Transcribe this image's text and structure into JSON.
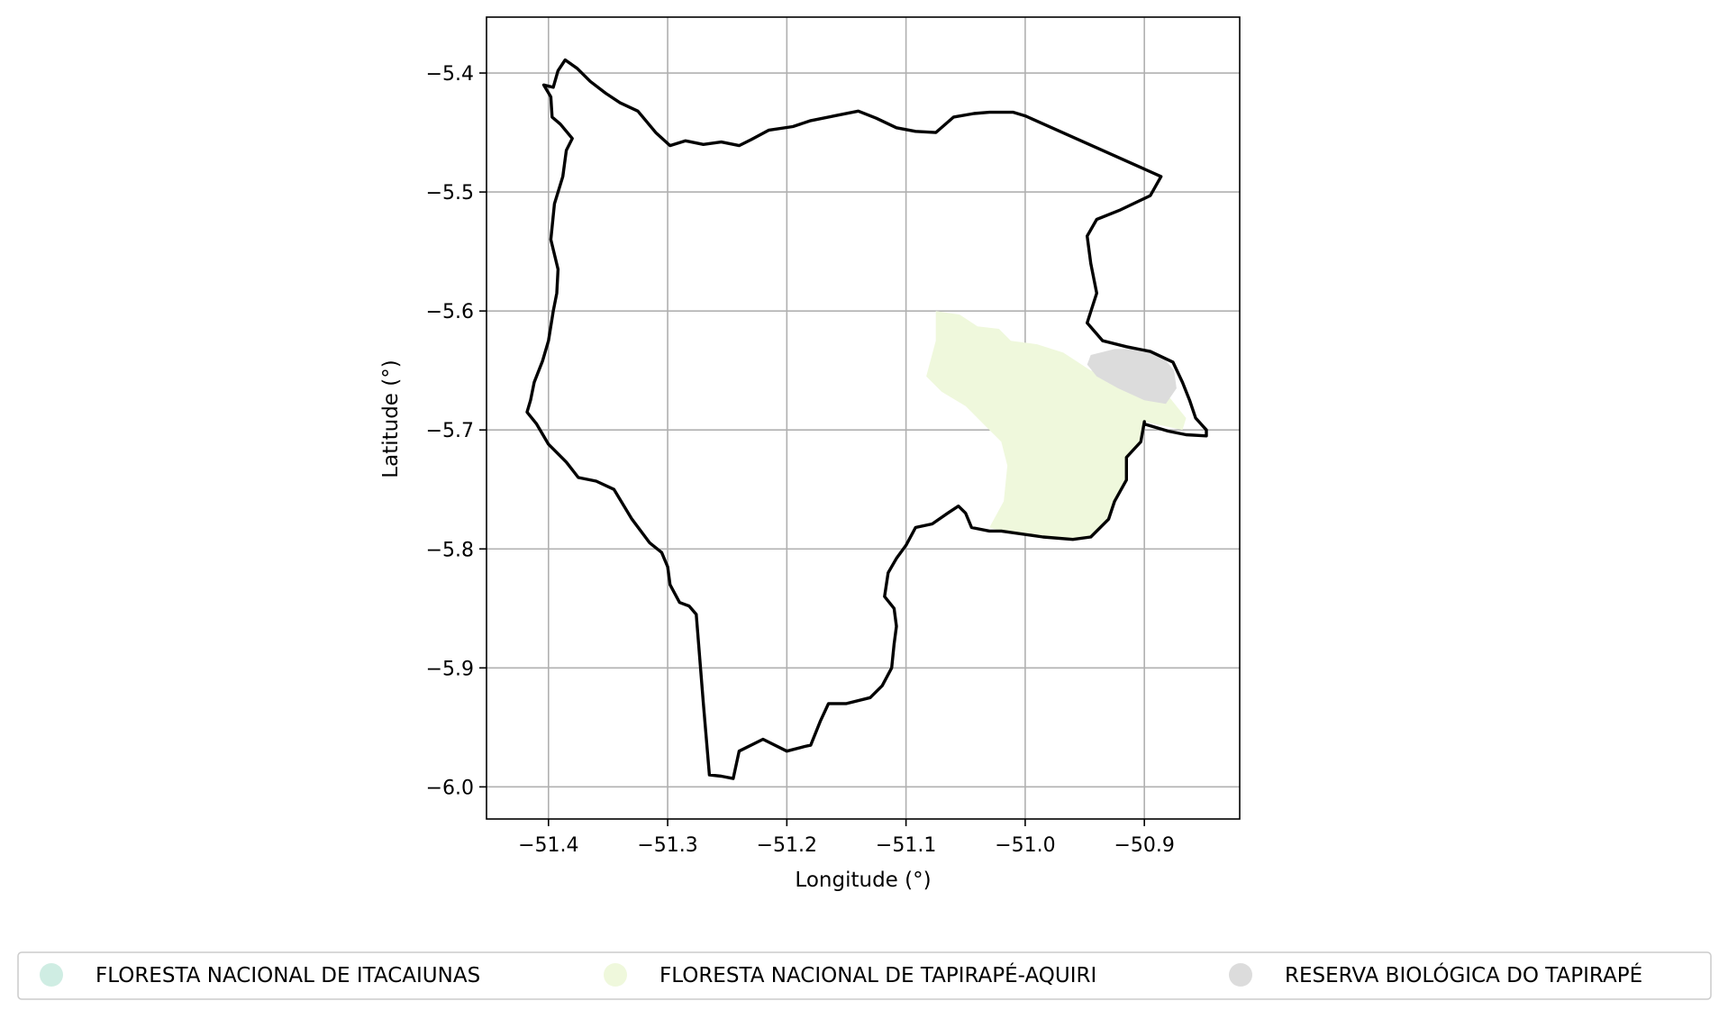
{
  "chart_data": {
    "type": "map",
    "xlabel": "Longitude (°)",
    "ylabel": "Latitude (°)",
    "xlim": [
      -51.452,
      -50.82
    ],
    "ylim": [
      -6.027,
      -5.353
    ],
    "x_ticks": [
      -51.4,
      -51.3,
      -51.2,
      -51.1,
      -51.0,
      -50.9
    ],
    "x_tick_labels": [
      "−51.4",
      "−51.3",
      "−51.2",
      "−51.1",
      "−51.0",
      "−50.9"
    ],
    "y_ticks": [
      -5.4,
      -5.5,
      -5.6,
      -5.7,
      -5.8,
      -5.9,
      -6.0
    ],
    "y_tick_labels": [
      "−5.4",
      "−5.5",
      "−5.6",
      "−5.7",
      "−5.8",
      "−5.9",
      "−6.0"
    ],
    "grid": true,
    "legend_position": "bottom",
    "boundary": {
      "color": "#000000",
      "coordinates": [
        [
          -51.404,
          -5.41
        ],
        [
          -51.396,
          -5.412
        ],
        [
          -51.392,
          -5.398
        ],
        [
          -51.386,
          -5.389
        ],
        [
          -51.376,
          -5.396
        ],
        [
          -51.365,
          -5.407
        ],
        [
          -51.352,
          -5.417
        ],
        [
          -51.34,
          -5.425
        ],
        [
          -51.325,
          -5.432
        ],
        [
          -51.31,
          -5.45
        ],
        [
          -51.298,
          -5.461
        ],
        [
          -51.285,
          -5.457
        ],
        [
          -51.27,
          -5.46
        ],
        [
          -51.255,
          -5.458
        ],
        [
          -51.24,
          -5.461
        ],
        [
          -51.23,
          -5.456
        ],
        [
          -51.215,
          -5.448
        ],
        [
          -51.195,
          -5.445
        ],
        [
          -51.18,
          -5.44
        ],
        [
          -51.16,
          -5.436
        ],
        [
          -51.14,
          -5.432
        ],
        [
          -51.125,
          -5.438
        ],
        [
          -51.108,
          -5.446
        ],
        [
          -51.092,
          -5.449
        ],
        [
          -51.075,
          -5.45
        ],
        [
          -51.06,
          -5.437
        ],
        [
          -51.043,
          -5.434
        ],
        [
          -51.03,
          -5.433
        ],
        [
          -51.01,
          -5.433
        ],
        [
          -51.0,
          -5.436
        ],
        [
          -50.886,
          -5.487
        ],
        [
          -50.895,
          -5.503
        ],
        [
          -50.92,
          -5.515
        ],
        [
          -50.94,
          -5.523
        ],
        [
          -50.948,
          -5.537
        ],
        [
          -50.945,
          -5.56
        ],
        [
          -50.94,
          -5.585
        ],
        [
          -50.948,
          -5.61
        ],
        [
          -50.935,
          -5.625
        ],
        [
          -50.915,
          -5.63
        ],
        [
          -50.895,
          -5.634
        ],
        [
          -50.876,
          -5.643
        ],
        [
          -50.868,
          -5.66
        ],
        [
          -50.862,
          -5.675
        ],
        [
          -50.857,
          -5.69
        ],
        [
          -50.848,
          -5.7
        ],
        [
          -50.848,
          -5.705
        ],
        [
          -50.865,
          -5.704
        ],
        [
          -50.88,
          -5.701
        ],
        [
          -50.9,
          -5.695
        ],
        [
          -50.9,
          -5.693
        ],
        [
          -50.903,
          -5.71
        ],
        [
          -50.915,
          -5.723
        ],
        [
          -50.915,
          -5.742
        ],
        [
          -50.925,
          -5.76
        ],
        [
          -50.93,
          -5.775
        ],
        [
          -50.945,
          -5.79
        ],
        [
          -50.96,
          -5.792
        ],
        [
          -50.985,
          -5.79
        ],
        [
          -51.02,
          -5.785
        ],
        [
          -51.03,
          -5.785
        ],
        [
          -51.045,
          -5.782
        ],
        [
          -51.05,
          -5.77
        ],
        [
          -51.056,
          -5.764
        ],
        [
          -51.065,
          -5.77
        ],
        [
          -51.078,
          -5.779
        ],
        [
          -51.092,
          -5.782
        ],
        [
          -51.1,
          -5.797
        ],
        [
          -51.108,
          -5.808
        ],
        [
          -51.115,
          -5.82
        ],
        [
          -51.118,
          -5.84
        ],
        [
          -51.11,
          -5.85
        ],
        [
          -51.108,
          -5.865
        ],
        [
          -51.11,
          -5.88
        ],
        [
          -51.112,
          -5.9
        ],
        [
          -51.12,
          -5.915
        ],
        [
          -51.13,
          -5.925
        ],
        [
          -51.15,
          -5.93
        ],
        [
          -51.165,
          -5.93
        ],
        [
          -51.172,
          -5.945
        ],
        [
          -51.18,
          -5.965
        ],
        [
          -51.185,
          -5.966
        ],
        [
          -51.2,
          -5.97
        ],
        [
          -51.22,
          -5.96
        ],
        [
          -51.24,
          -5.97
        ],
        [
          -51.245,
          -5.993
        ],
        [
          -51.255,
          -5.991
        ],
        [
          -51.265,
          -5.99
        ],
        [
          -51.27,
          -5.93
        ],
        [
          -51.276,
          -5.855
        ],
        [
          -51.282,
          -5.848
        ],
        [
          -51.29,
          -5.845
        ],
        [
          -51.298,
          -5.83
        ],
        [
          -51.3,
          -5.815
        ],
        [
          -51.305,
          -5.803
        ],
        [
          -51.315,
          -5.795
        ],
        [
          -51.33,
          -5.775
        ],
        [
          -51.345,
          -5.75
        ],
        [
          -51.36,
          -5.743
        ],
        [
          -51.375,
          -5.74
        ],
        [
          -51.385,
          -5.727
        ],
        [
          -51.4,
          -5.712
        ],
        [
          -51.41,
          -5.695
        ],
        [
          -51.418,
          -5.685
        ],
        [
          -51.415,
          -5.675
        ],
        [
          -51.412,
          -5.66
        ],
        [
          -51.405,
          -5.642
        ],
        [
          -51.4,
          -5.625
        ],
        [
          -51.396,
          -5.6
        ],
        [
          -51.393,
          -5.585
        ],
        [
          -51.392,
          -5.565
        ],
        [
          -51.398,
          -5.54
        ],
        [
          -51.395,
          -5.51
        ],
        [
          -51.388,
          -5.487
        ],
        [
          -51.385,
          -5.465
        ],
        [
          -51.38,
          -5.455
        ],
        [
          -51.39,
          -5.443
        ],
        [
          -51.397,
          -5.437
        ],
        [
          -51.398,
          -5.42
        ],
        [
          -51.404,
          -5.41
        ]
      ]
    },
    "areas": [
      {
        "name": "FLORESTA NACIONAL DE ITACAIUNAS",
        "color": "#cfede3",
        "coordinates": []
      },
      {
        "name": "FLORESTA NACIONAL DE TAPIRAPÉ-AQUIRI",
        "color": "#eff8dc",
        "coordinates": [
          [
            -51.075,
            -5.6
          ],
          [
            -51.055,
            -5.603
          ],
          [
            -51.04,
            -5.613
          ],
          [
            -51.022,
            -5.615
          ],
          [
            -51.012,
            -5.625
          ],
          [
            -50.99,
            -5.628
          ],
          [
            -50.968,
            -5.635
          ],
          [
            -50.945,
            -5.65
          ],
          [
            -50.92,
            -5.655
          ],
          [
            -50.885,
            -5.665
          ],
          [
            -50.865,
            -5.69
          ],
          [
            -50.868,
            -5.7
          ],
          [
            -50.9,
            -5.693
          ],
          [
            -50.903,
            -5.71
          ],
          [
            -50.915,
            -5.723
          ],
          [
            -50.915,
            -5.742
          ],
          [
            -50.925,
            -5.76
          ],
          [
            -50.93,
            -5.775
          ],
          [
            -50.945,
            -5.79
          ],
          [
            -50.96,
            -5.792
          ],
          [
            -50.985,
            -5.79
          ],
          [
            -51.02,
            -5.785
          ],
          [
            -51.03,
            -5.782
          ],
          [
            -51.018,
            -5.76
          ],
          [
            -51.015,
            -5.73
          ],
          [
            -51.02,
            -5.71
          ],
          [
            -51.035,
            -5.695
          ],
          [
            -51.05,
            -5.68
          ],
          [
            -51.07,
            -5.668
          ],
          [
            -51.083,
            -5.655
          ],
          [
            -51.075,
            -5.625
          ],
          [
            -51.075,
            -5.6
          ]
        ]
      },
      {
        "name": "RESERVA BIOLÓGICA DO TAPIRAPÉ",
        "color": "#dcdcdc",
        "coordinates": [
          [
            -50.945,
            -5.637
          ],
          [
            -50.925,
            -5.632
          ],
          [
            -50.905,
            -5.632
          ],
          [
            -50.885,
            -5.638
          ],
          [
            -50.875,
            -5.65
          ],
          [
            -50.873,
            -5.665
          ],
          [
            -50.882,
            -5.678
          ],
          [
            -50.9,
            -5.675
          ],
          [
            -50.922,
            -5.665
          ],
          [
            -50.94,
            -5.655
          ],
          [
            -50.948,
            -5.645
          ],
          [
            -50.945,
            -5.637
          ]
        ]
      }
    ]
  }
}
